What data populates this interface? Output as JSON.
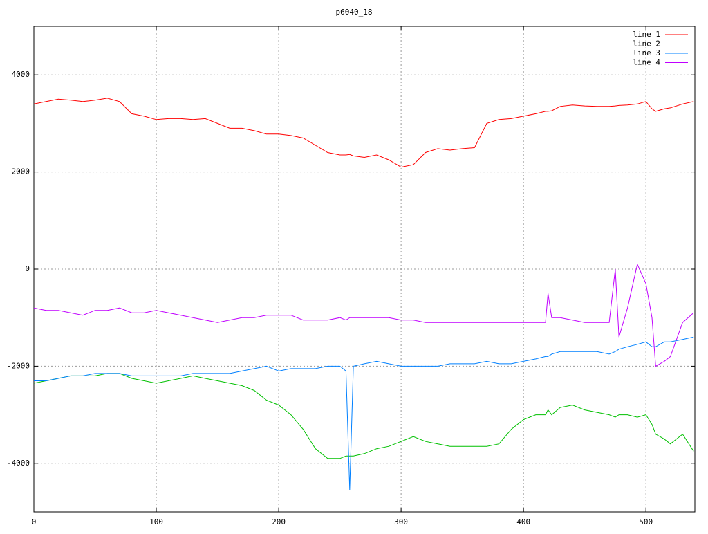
{
  "chart_data": {
    "type": "line",
    "title": "p6040_18",
    "x": [
      0,
      10,
      20,
      30,
      40,
      50,
      60,
      70,
      80,
      90,
      100,
      110,
      120,
      130,
      140,
      150,
      160,
      170,
      180,
      190,
      200,
      210,
      220,
      230,
      240,
      250,
      255,
      258,
      261,
      270,
      280,
      290,
      300,
      310,
      320,
      330,
      340,
      350,
      360,
      370,
      380,
      390,
      400,
      410,
      418,
      420,
      423,
      430,
      440,
      450,
      460,
      470,
      475,
      478,
      485,
      493,
      500,
      505,
      508,
      515,
      520,
      530,
      539
    ],
    "series": [
      {
        "name": "line 1",
        "color": "#ff0000",
        "values": [
          3400,
          3450,
          3500,
          3480,
          3450,
          3480,
          3520,
          3450,
          3200,
          3150,
          3080,
          3100,
          3100,
          3080,
          3100,
          3000,
          2900,
          2900,
          2850,
          2780,
          2780,
          2750,
          2700,
          2550,
          2400,
          2350,
          2350,
          2360,
          2330,
          2300,
          2350,
          2250,
          2100,
          2150,
          2400,
          2480,
          2450,
          2480,
          2500,
          3000,
          3080,
          3100,
          3150,
          3200,
          3250,
          3250,
          3260,
          3350,
          3380,
          3360,
          3350,
          3350,
          3360,
          3370,
          3380,
          3400,
          3450,
          3300,
          3250,
          3300,
          3320,
          3400,
          3450
        ]
      },
      {
        "name": "line 2",
        "color": "#00c000",
        "values": [
          -2350,
          -2300,
          -2250,
          -2200,
          -2200,
          -2200,
          -2150,
          -2150,
          -2250,
          -2300,
          -2350,
          -2300,
          -2250,
          -2200,
          -2250,
          -2300,
          -2350,
          -2400,
          -2500,
          -2700,
          -2800,
          -3000,
          -3300,
          -3700,
          -3900,
          -3900,
          -3850,
          -3850,
          -3850,
          -3800,
          -3700,
          -3650,
          -3550,
          -3450,
          -3550,
          -3600,
          -3650,
          -3650,
          -3650,
          -3650,
          -3600,
          -3300,
          -3100,
          -3000,
          -3000,
          -2900,
          -3000,
          -2850,
          -2800,
          -2900,
          -2950,
          -3000,
          -3050,
          -3000,
          -3000,
          -3050,
          -3000,
          -3200,
          -3400,
          -3500,
          -3600,
          -3400,
          -3750
        ]
      },
      {
        "name": "line 3",
        "color": "#0080ff",
        "values": [
          -2300,
          -2300,
          -2250,
          -2200,
          -2200,
          -2150,
          -2150,
          -2150,
          -2200,
          -2200,
          -2200,
          -2200,
          -2200,
          -2150,
          -2150,
          -2150,
          -2150,
          -2100,
          -2050,
          -2000,
          -2100,
          -2050,
          -2050,
          -2050,
          -2000,
          -2000,
          -2100,
          -4550,
          -2000,
          -1950,
          -1900,
          -1950,
          -2000,
          -2000,
          -2000,
          -2000,
          -1950,
          -1950,
          -1950,
          -1900,
          -1950,
          -1950,
          -1900,
          -1850,
          -1800,
          -1800,
          -1750,
          -1700,
          -1700,
          -1700,
          -1700,
          -1750,
          -1700,
          -1650,
          -1600,
          -1550,
          -1500,
          -1600,
          -1600,
          -1500,
          -1500,
          -1450,
          -1400
        ]
      },
      {
        "name": "line 4",
        "color": "#c000ff",
        "values": [
          -800,
          -850,
          -850,
          -900,
          -950,
          -850,
          -850,
          -800,
          -900,
          -900,
          -850,
          -900,
          -950,
          -1000,
          -1050,
          -1100,
          -1050,
          -1000,
          -1000,
          -950,
          -950,
          -950,
          -1050,
          -1050,
          -1050,
          -1000,
          -1050,
          -1000,
          -1000,
          -1000,
          -1000,
          -1000,
          -1050,
          -1050,
          -1100,
          -1100,
          -1100,
          -1100,
          -1100,
          -1100,
          -1100,
          -1100,
          -1100,
          -1100,
          -1100,
          -500,
          -1000,
          -1000,
          -1050,
          -1100,
          -1100,
          -1100,
          0,
          -1400,
          -800,
          100,
          -300,
          -1000,
          -2000,
          -1900,
          -1800,
          -1100,
          -900
        ]
      }
    ],
    "xlim": [
      0,
      540
    ],
    "ylim": [
      -5000,
      5000
    ],
    "xticks": [
      0,
      100,
      200,
      300,
      400,
      500
    ],
    "yticks": [
      -4000,
      -2000,
      0,
      2000,
      4000
    ],
    "grid": true,
    "legend": "top-right"
  }
}
